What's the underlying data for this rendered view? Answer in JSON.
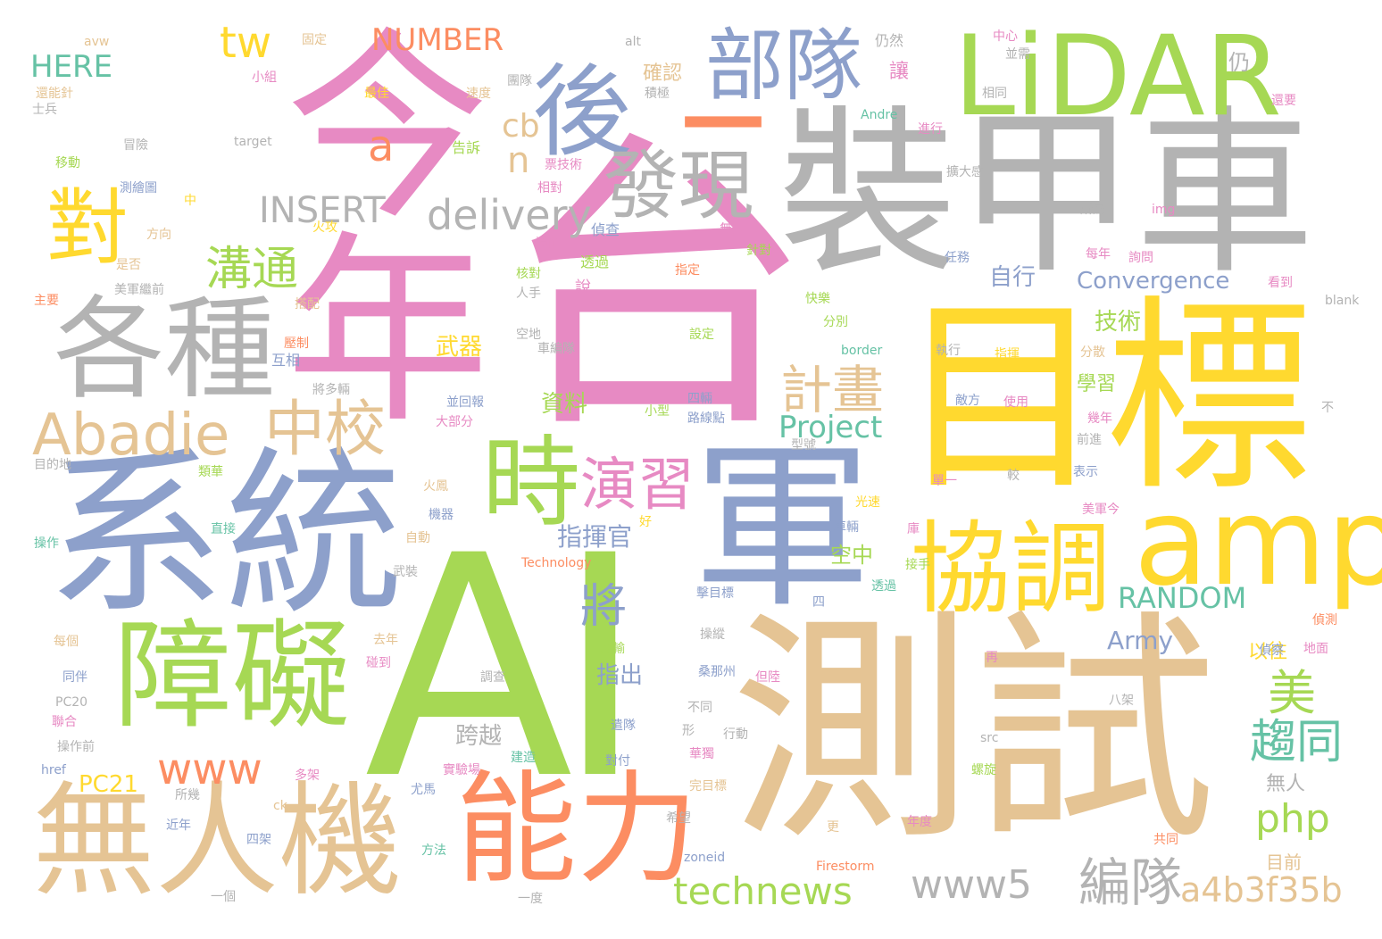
{
  "palette": {
    "pink": "#e78ac3",
    "gray": "#b3b3b3",
    "green": "#a6d854",
    "yellow": "#ffd92f",
    "tan": "#e5c494",
    "blue": "#8da0cb",
    "orange": "#fc8d62",
    "teal": "#66c2a5"
  },
  "words": [
    {
      "id": "w-ai",
      "text": "AI",
      "color": "#a6d854"
    },
    {
      "id": "w-taiwan",
      "text": "台",
      "color": "#e78ac3"
    },
    {
      "id": "w-jinnian",
      "text": "今年",
      "color": "#e78ac3"
    },
    {
      "id": "w-zhuangjiache",
      "text": "裝甲車",
      "color": "#b3b3b3"
    },
    {
      "id": "w-mubiao",
      "text": "目標",
      "color": "#ffd92f"
    },
    {
      "id": "w-ceshi",
      "text": "測試",
      "color": "#e5c494"
    },
    {
      "id": "w-xitong",
      "text": "系統",
      "color": "#8da0cb"
    },
    {
      "id": "w-jun",
      "text": "軍",
      "color": "#8da0cb"
    },
    {
      "id": "w-lidar",
      "text": "LiDAR",
      "color": "#a6d854"
    },
    {
      "id": "w-zhangai",
      "text": "障礙",
      "color": "#a6d854"
    },
    {
      "id": "w-wurenji",
      "text": "無人機",
      "color": "#e5c494"
    },
    {
      "id": "w-gezhong",
      "text": "各種",
      "color": "#b3b3b3"
    },
    {
      "id": "w-nengli",
      "text": "能力",
      "color": "#fc8d62"
    },
    {
      "id": "w-xietiao",
      "text": "協調",
      "color": "#ffd92f"
    },
    {
      "id": "w-amp",
      "text": "amp",
      "color": "#ffd92f"
    },
    {
      "id": "w-hou",
      "text": "後",
      "color": "#8da0cb"
    },
    {
      "id": "w-budui",
      "text": "部隊",
      "color": "#8da0cb"
    },
    {
      "id": "w-faxian",
      "text": "發現",
      "color": "#b3b3b3"
    },
    {
      "id": "w-dash",
      "text": "—",
      "color": "#fc8d62"
    },
    {
      "id": "w-shi",
      "text": "時",
      "color": "#a6d854"
    },
    {
      "id": "w-dui",
      "text": "對",
      "color": "#ffd92f"
    },
    {
      "id": "w-abadie",
      "text": "Abadie",
      "color": "#e5c494"
    },
    {
      "id": "w-zhongxiao",
      "text": "中校",
      "color": "#e5c494"
    },
    {
      "id": "w-yanxi",
      "text": "演習",
      "color": "#e78ac3"
    },
    {
      "id": "w-jihua",
      "text": "計畫",
      "color": "#e5c494"
    },
    {
      "id": "w-project",
      "text": "Project",
      "color": "#66c2a5"
    },
    {
      "id": "w-delivery",
      "text": "delivery",
      "color": "#b3b3b3"
    },
    {
      "id": "w-insert",
      "text": "INSERT",
      "color": "#b3b3b3"
    },
    {
      "id": "w-goutong",
      "text": "溝通",
      "color": "#a6d854"
    },
    {
      "id": "w-technews",
      "text": "technews",
      "color": "#a6d854"
    },
    {
      "id": "w-www5",
      "text": "www5",
      "color": "#b3b3b3"
    },
    {
      "id": "w-www",
      "text": "www",
      "color": "#fc8d62"
    },
    {
      "id": "w-bianduei",
      "text": "編隊",
      "color": "#b3b3b3"
    },
    {
      "id": "w-a4b3",
      "text": "a4b3f35b",
      "color": "#e5c494"
    },
    {
      "id": "w-php",
      "text": "php",
      "color": "#a6d854"
    },
    {
      "id": "w-mei",
      "text": "美",
      "color": "#a6d854"
    },
    {
      "id": "w-qutong",
      "text": "趨同",
      "color": "#66c2a5"
    },
    {
      "id": "w-random",
      "text": "RANDOM",
      "color": "#66c2a5"
    },
    {
      "id": "w-jiang",
      "text": "將",
      "color": "#8da0cb"
    },
    {
      "id": "w-tw",
      "text": "tw",
      "color": "#ffd92f"
    },
    {
      "id": "w-number",
      "text": "NUMBER",
      "color": "#fc8d62"
    },
    {
      "id": "w-here",
      "text": "HERE",
      "color": "#66c2a5"
    },
    {
      "id": "w-a",
      "text": "a",
      "color": "#fc8d62"
    },
    {
      "id": "w-cb",
      "text": "cb",
      "color": "#e5c494"
    },
    {
      "id": "w-n",
      "text": "n",
      "color": "#e5c494"
    },
    {
      "id": "w-convergence",
      "text": "Convergence",
      "color": "#8da0cb"
    },
    {
      "id": "w-zhihuiguan",
      "text": "指揮官",
      "color": "#8da0cb"
    },
    {
      "id": "w-pc21",
      "text": "PC21",
      "color": "#ffd92f"
    },
    {
      "id": "w-army",
      "text": "Army",
      "color": "#8da0cb"
    },
    {
      "id": "w-kuayue",
      "text": "跨越",
      "color": "#b3b3b3"
    },
    {
      "id": "w-jishu",
      "text": "技術",
      "color": "#a6d854"
    },
    {
      "id": "w-xuexi",
      "text": "學習",
      "color": "#a6d854"
    },
    {
      "id": "w-kongzhong",
      "text": "空中",
      "color": "#a6d854"
    },
    {
      "id": "w-zixing",
      "text": "自行",
      "color": "#8da0cb"
    },
    {
      "id": "w-ziliao",
      "text": "資料",
      "color": "#a6d854"
    },
    {
      "id": "w-wuqi",
      "text": "武器",
      "color": "#ffd92f"
    },
    {
      "id": "w-zhichu",
      "text": "指出",
      "color": "#8da0cb"
    },
    {
      "id": "w-yiwang",
      "text": "以往",
      "color": "#ffd92f"
    },
    {
      "id": "w-wuren",
      "text": "無人",
      "color": "#b3b3b3"
    },
    {
      "id": "w-mubiao2",
      "text": "目前",
      "color": "#e5c494"
    },
    {
      "id": "w-queren",
      "text": "確認",
      "color": "#e5c494"
    },
    {
      "id": "w-rang",
      "text": "讓",
      "color": "#e78ac3"
    },
    {
      "id": "w-reng",
      "text": "仍",
      "color": "#b3b3b3"
    },
    {
      "id": "w-rengran",
      "text": "仍然",
      "color": "#b3b3b3"
    },
    {
      "id": "w-avw",
      "text": "avw",
      "color": "#e5c494"
    },
    {
      "id": "w-alt",
      "text": "alt",
      "color": "#b3b3b3"
    },
    {
      "id": "w-guding",
      "text": "固定",
      "color": "#e5c494"
    },
    {
      "id": "w-zhongxin",
      "text": "中心",
      "color": "#e78ac3"
    },
    {
      "id": "w-bingxu",
      "text": "並需",
      "color": "#b3b3b3"
    },
    {
      "id": "w-xiaozu",
      "text": "小組",
      "color": "#e78ac3"
    },
    {
      "id": "w-tuandui",
      "text": "團隊",
      "color": "#b3b3b3"
    },
    {
      "id": "w-xiangtong",
      "text": "相同",
      "color": "#b3b3b3"
    },
    {
      "id": "w-haineng",
      "text": "還能針",
      "color": "#e5c494"
    },
    {
      "id": "w-zuijia",
      "text": "最佳",
      "color": "#ffd92f"
    },
    {
      "id": "w-sudu",
      "text": "速度",
      "color": "#e5c494"
    },
    {
      "id": "w-jiji",
      "text": "積極",
      "color": "#b3b3b3"
    },
    {
      "id": "w-haiyao",
      "text": "還要",
      "color": "#e78ac3"
    },
    {
      "id": "w-shibing",
      "text": "士兵",
      "color": "#b3b3b3"
    },
    {
      "id": "w-andre",
      "text": "Andre",
      "color": "#66c2a5"
    },
    {
      "id": "w-jinxing",
      "text": "進行",
      "color": "#e78ac3"
    },
    {
      "id": "w-target",
      "text": "target",
      "color": "#b3b3b3"
    },
    {
      "id": "w-maoxian",
      "text": "冒險",
      "color": "#b3b3b3"
    },
    {
      "id": "w-gaosu",
      "text": "告訴",
      "color": "#a6d854"
    },
    {
      "id": "w-yidong",
      "text": "移動",
      "color": "#a6d854"
    },
    {
      "id": "w-piaojishu",
      "text": "票技術",
      "color": "#e78ac3"
    },
    {
      "id": "w-kuoda",
      "text": "擴大感",
      "color": "#b3b3b3"
    },
    {
      "id": "w-celuetu",
      "text": "測繪圖",
      "color": "#8da0cb"
    },
    {
      "id": "w-xiangdui",
      "text": "相對",
      "color": "#e78ac3"
    },
    {
      "id": "w-zhong",
      "text": "中",
      "color": "#ffd92f"
    },
    {
      "id": "w-suoshu",
      "text": "所屬",
      "color": "#b3b3b3"
    },
    {
      "id": "w-img",
      "text": "img",
      "color": "#e78ac3"
    },
    {
      "id": "w-huogong",
      "text": "火攻",
      "color": "#ffd92f"
    },
    {
      "id": "w-huanneng",
      "text": "還能",
      "color": "#e78ac3"
    },
    {
      "id": "w-zhencha",
      "text": "偵查",
      "color": "#8da0cb"
    },
    {
      "id": "w-wurenche",
      "text": "無人車",
      "color": "#e78ac3"
    },
    {
      "id": "w-fangxiang",
      "text": "方向",
      "color": "#e5c494"
    },
    {
      "id": "w-shifou",
      "text": "是否",
      "color": "#e5c494"
    },
    {
      "id": "w-tongguo",
      "text": "透過",
      "color": "#a6d854"
    },
    {
      "id": "w-zhendui",
      "text": "針對",
      "color": "#a6d854"
    },
    {
      "id": "w-meinian",
      "text": "每年",
      "color": "#e78ac3"
    },
    {
      "id": "w-xunwen",
      "text": "詢問",
      "color": "#e78ac3"
    },
    {
      "id": "w-renwu",
      "text": "任務",
      "color": "#8da0cb"
    },
    {
      "id": "w-zhuyao",
      "text": "主要",
      "color": "#fc8d62"
    },
    {
      "id": "w-meijunzhan",
      "text": "美軍繼前",
      "color": "#b3b3b3"
    },
    {
      "id": "w-hedui",
      "text": "核對",
      "color": "#a6d854"
    },
    {
      "id": "w-zhiding",
      "text": "指定",
      "color": "#fc8d62"
    },
    {
      "id": "w-renshou",
      "text": "人手",
      "color": "#b3b3b3"
    },
    {
      "id": "w-shuo",
      "text": "說",
      "color": "#e78ac3"
    },
    {
      "id": "w-kanda",
      "text": "看到",
      "color": "#e78ac3"
    },
    {
      "id": "w-blank",
      "text": "blank",
      "color": "#b3b3b3"
    },
    {
      "id": "w-dapei",
      "text": "搭配",
      "color": "#e5c494"
    },
    {
      "id": "w-fenbie",
      "text": "分別",
      "color": "#a6d854"
    },
    {
      "id": "w-kuaishu",
      "text": "快樂",
      "color": "#a6d854"
    },
    {
      "id": "w-kongdi",
      "text": "空地",
      "color": "#b3b3b3"
    },
    {
      "id": "w-chebiandui",
      "text": "車編隊",
      "color": "#b3b3b3"
    },
    {
      "id": "w-sheding",
      "text": "設定",
      "color": "#a6d854"
    },
    {
      "id": "w-huxiang",
      "text": "互相",
      "color": "#8da0cb"
    },
    {
      "id": "w-yazhi",
      "text": "壓制",
      "color": "#fc8d62"
    },
    {
      "id": "w-border",
      "text": "border",
      "color": "#66c2a5"
    },
    {
      "id": "w-zhixing",
      "text": "執行",
      "color": "#b3b3b3"
    },
    {
      "id": "w-zhihui",
      "text": "指揮",
      "color": "#ffd92f"
    },
    {
      "id": "w-fensan",
      "text": "分散",
      "color": "#e5c494"
    },
    {
      "id": "w-xuduo",
      "text": "將多輛",
      "color": "#b3b3b3"
    },
    {
      "id": "w-huibao",
      "text": "並回報",
      "color": "#8da0cb"
    },
    {
      "id": "w-siliang",
      "text": "四輛",
      "color": "#8da0cb"
    },
    {
      "id": "w-difang",
      "text": "敵方",
      "color": "#8da0cb"
    },
    {
      "id": "w-shiyong",
      "text": "使用",
      "color": "#e78ac3"
    },
    {
      "id": "w-jinian",
      "text": "幾年",
      "color": "#e78ac3"
    },
    {
      "id": "w-dabufen",
      "text": "大部分",
      "color": "#e78ac3"
    },
    {
      "id": "w-xiaoxing",
      "text": "小型",
      "color": "#a6d854"
    },
    {
      "id": "w-lujingdian",
      "text": "路線點",
      "color": "#8da0cb"
    },
    {
      "id": "w-qianjin",
      "text": "前進",
      "color": "#b3b3b3"
    },
    {
      "id": "w-bu",
      "text": "不",
      "color": "#b3b3b3"
    },
    {
      "id": "w-mudidi",
      "text": "目的地",
      "color": "#b3b3b3"
    },
    {
      "id": "w-xinghao",
      "text": "型號",
      "color": "#b3b3b3"
    },
    {
      "id": "w-gaohua",
      "text": "類華",
      "color": "#a6d854"
    },
    {
      "id": "w-danyi",
      "text": "單一",
      "color": "#e78ac3"
    },
    {
      "id": "w-jiao",
      "text": "較",
      "color": "#b3b3b3"
    },
    {
      "id": "w-biaoshi",
      "text": "表示",
      "color": "#8da0cb"
    },
    {
      "id": "w-huofeng",
      "text": "火鳳",
      "color": "#e5c494"
    },
    {
      "id": "w-guangsu",
      "text": "光速",
      "color": "#ffd92f"
    },
    {
      "id": "w-jiqi",
      "text": "機器",
      "color": "#8da0cb"
    },
    {
      "id": "w-hao",
      "text": "好",
      "color": "#ffd92f"
    },
    {
      "id": "w-meijunjin",
      "text": "美軍今",
      "color": "#e78ac3"
    },
    {
      "id": "w-zhijie",
      "text": "直接",
      "color": "#66c2a5"
    },
    {
      "id": "w-caozuo",
      "text": "操作",
      "color": "#66c2a5"
    },
    {
      "id": "w-cheliang",
      "text": "車輛",
      "color": "#8da0cb"
    },
    {
      "id": "w-ku",
      "text": "庫",
      "color": "#e78ac3"
    },
    {
      "id": "w-zidong",
      "text": "自動",
      "color": "#e5c494"
    },
    {
      "id": "w-jieshou",
      "text": "接手",
      "color": "#a6d854"
    },
    {
      "id": "w-technology",
      "text": "Technology",
      "color": "#fc8d62"
    },
    {
      "id": "w-wuzhuang",
      "text": "武裝",
      "color": "#b3b3b3"
    },
    {
      "id": "w-toutguo",
      "text": "透過",
      "color": "#66c2a5"
    },
    {
      "id": "w-jimubiao",
      "text": "擊目標",
      "color": "#8da0cb"
    },
    {
      "id": "w-si",
      "text": "四",
      "color": "#8da0cb"
    },
    {
      "id": "w-caozong",
      "text": "操縱",
      "color": "#b3b3b3"
    },
    {
      "id": "w-yunshu",
      "text": "運輸",
      "color": "#a6d854"
    },
    {
      "id": "w-zhence",
      "text": "偵測",
      "color": "#fc8d62"
    },
    {
      "id": "w-meige",
      "text": "每個",
      "color": "#e5c494"
    },
    {
      "id": "w-qunian",
      "text": "去年",
      "color": "#e5c494"
    },
    {
      "id": "w-zhencha2",
      "text": "偵察",
      "color": "#8da0cb"
    },
    {
      "id": "w-dimian",
      "text": "地面",
      "color": "#e78ac3"
    },
    {
      "id": "w-tongban",
      "text": "同伴",
      "color": "#8da0cb"
    },
    {
      "id": "w-pengdao",
      "text": "碰到",
      "color": "#e78ac3"
    },
    {
      "id": "w-diaocha",
      "text": "調查",
      "color": "#b3b3b3"
    },
    {
      "id": "w-sangbu",
      "text": "桑那州",
      "color": "#8da0cb"
    },
    {
      "id": "w-danlu",
      "text": "但陸",
      "color": "#e78ac3"
    },
    {
      "id": "w-zai",
      "text": "再",
      "color": "#e78ac3"
    },
    {
      "id": "w-pc20",
      "text": "PC20",
      "color": "#b3b3b3"
    },
    {
      "id": "w-butong",
      "text": "不同",
      "color": "#b3b3b3"
    },
    {
      "id": "w-bajia",
      "text": "八架",
      "color": "#b3b3b3"
    },
    {
      "id": "w-lianhe",
      "text": "聯合",
      "color": "#e78ac3"
    },
    {
      "id": "w-qianbi",
      "text": "遣隊",
      "color": "#8da0cb"
    },
    {
      "id": "w-xing",
      "text": "形",
      "color": "#b3b3b3"
    },
    {
      "id": "w-xingdong",
      "text": "行動",
      "color": "#b3b3b3"
    },
    {
      "id": "w-caozuoqian",
      "text": "操作前",
      "color": "#b3b3b3"
    },
    {
      "id": "w-src",
      "text": "src",
      "color": "#b3b3b3"
    },
    {
      "id": "w-jianzao",
      "text": "建造",
      "color": "#66c2a5"
    },
    {
      "id": "w-huazhu",
      "text": "華獨",
      "color": "#e78ac3"
    },
    {
      "id": "w-duifu",
      "text": "對付",
      "color": "#8da0cb"
    },
    {
      "id": "w-href",
      "text": "href",
      "color": "#8da0cb"
    },
    {
      "id": "w-shiyanchang",
      "text": "實驗場",
      "color": "#e78ac3"
    },
    {
      "id": "w-duojia",
      "text": "多架",
      "color": "#e78ac3"
    },
    {
      "id": "w-luoxuan",
      "text": "螺旋",
      "color": "#a6d854"
    },
    {
      "id": "w-youma",
      "text": "尤馬",
      "color": "#8da0cb"
    },
    {
      "id": "w-wanmubiao",
      "text": "完目標",
      "color": "#e5c494"
    },
    {
      "id": "w-suojian",
      "text": "所幾",
      "color": "#b3b3b3"
    },
    {
      "id": "w-ck",
      "text": "ck",
      "color": "#e5c494"
    },
    {
      "id": "w-xiwang",
      "text": "希望",
      "color": "#b3b3b3"
    },
    {
      "id": "w-jinnian2",
      "text": "近年",
      "color": "#8da0cb"
    },
    {
      "id": "w-geng",
      "text": "更",
      "color": "#e5c494"
    },
    {
      "id": "w-niandu",
      "text": "年度",
      "color": "#e78ac3"
    },
    {
      "id": "w-sijia",
      "text": "四架",
      "color": "#8da0cb"
    },
    {
      "id": "w-gongtong",
      "text": "共同",
      "color": "#fc8d62"
    },
    {
      "id": "w-fangfa",
      "text": "方法",
      "color": "#66c2a5"
    },
    {
      "id": "w-zoneid",
      "text": "zoneid",
      "color": "#8da0cb"
    },
    {
      "id": "w-firestorm",
      "text": "Firestorm",
      "color": "#fc8d62"
    },
    {
      "id": "w-yige",
      "text": "一個",
      "color": "#b3b3b3"
    },
    {
      "id": "w-yidu",
      "text": "一度",
      "color": "#b3b3b3"
    }
  ]
}
